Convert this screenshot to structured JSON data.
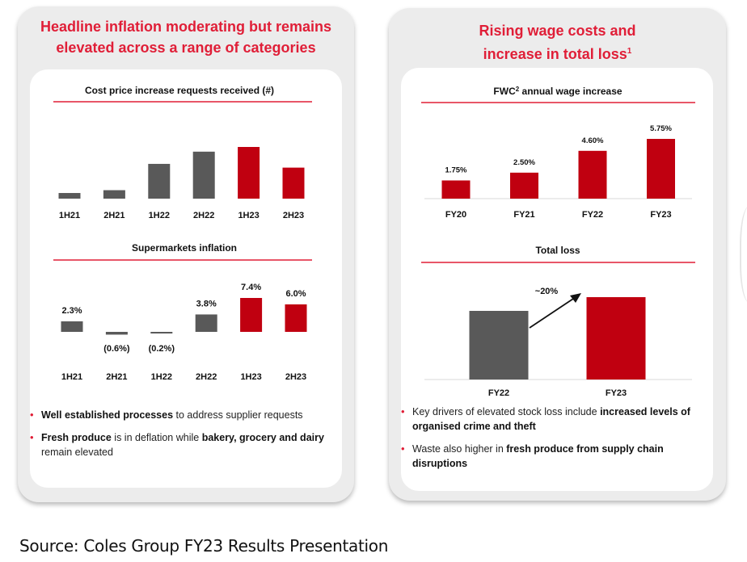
{
  "left_panel": {
    "title_line1": "Headline inflation moderating but remains",
    "title_line2": "elevated across a range of categories",
    "bullets": [
      {
        "bold": "Well established processes",
        "rest": " to address supplier requests"
      },
      {
        "bold": "Fresh produce",
        "mid": " is in deflation while ",
        "bold2": "bakery, grocery and dairy",
        "rest": " remain elevated"
      }
    ]
  },
  "right_panel": {
    "title_line1": "Rising wage costs and",
    "title_line2": "increase in total loss",
    "title_sup": "1",
    "bullets": [
      {
        "text": "Key drivers of elevated stock loss include ",
        "bold": "increased levels of organised crime and theft"
      },
      {
        "text": "Waste also higher in ",
        "bold": "fresh produce from supply chain disruptions"
      }
    ]
  },
  "colors": {
    "grey": "#595959",
    "red": "#c00010",
    "rule": "#e01e37",
    "title": "#e01e37"
  },
  "chart_data": [
    {
      "id": "cost-price",
      "type": "bar",
      "title": "Cost price increase requests received (#)",
      "categories": [
        "1H21",
        "2H21",
        "1H22",
        "2H22",
        "1H23",
        "2H23"
      ],
      "values": [
        6,
        9,
        37,
        50,
        55,
        33
      ],
      "colors": [
        "grey",
        "grey",
        "grey",
        "grey",
        "red",
        "red"
      ],
      "value_labels": [],
      "ylim": [
        0,
        60
      ],
      "note": "unlabelled bars; relative heights estimated"
    },
    {
      "id": "supermarket-inflation",
      "type": "bar",
      "title": "Supermarkets inflation",
      "categories": [
        "1H21",
        "2H21",
        "1H22",
        "2H22",
        "1H23",
        "2H23"
      ],
      "values": [
        2.3,
        -0.6,
        -0.2,
        3.8,
        7.4,
        6.0
      ],
      "colors": [
        "grey",
        "grey",
        "grey",
        "grey",
        "red",
        "red"
      ],
      "value_labels": [
        "2.3%",
        "(0.6%)",
        "(0.2%)",
        "3.8%",
        "7.4%",
        "6.0%"
      ],
      "ylim": [
        -1,
        8
      ]
    },
    {
      "id": "fwc-wage",
      "type": "bar",
      "title": "FWC",
      "title_sup": "2",
      "title_rest": " annual wage increase",
      "categories": [
        "FY20",
        "FY21",
        "FY22",
        "FY23"
      ],
      "values": [
        1.75,
        2.5,
        4.6,
        5.75
      ],
      "colors": [
        "red",
        "red",
        "red",
        "red"
      ],
      "value_labels": [
        "1.75%",
        "2.50%",
        "4.60%",
        "5.75%"
      ],
      "ylim": [
        0,
        6
      ]
    },
    {
      "id": "total-loss",
      "type": "bar",
      "title": "Total loss",
      "categories": [
        "FY22",
        "FY23"
      ],
      "values": [
        100,
        120
      ],
      "colors": [
        "grey",
        "red"
      ],
      "value_labels": [],
      "annotation": "~20%",
      "ylim": [
        0,
        125
      ]
    }
  ],
  "source": "Source: Coles Group FY23 Results Presentation"
}
